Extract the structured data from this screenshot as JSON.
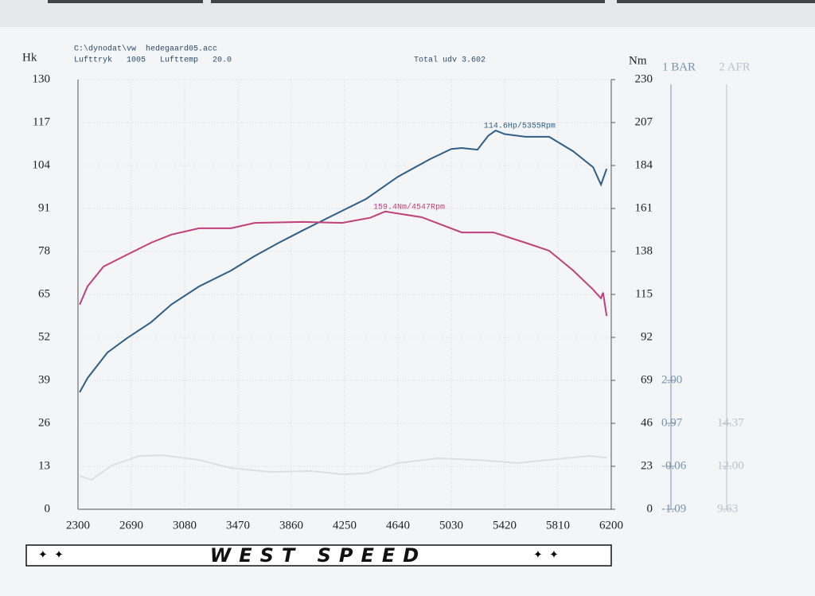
{
  "chart_data": {
    "type": "line",
    "header": {
      "file": "C:\\dynodat\\vw  hedegaard05.acc",
      "conditions": "Lufttryk   1005   Lufttemp   20.0",
      "total": "Total udv 3.602"
    },
    "ylabel": "Hk",
    "y2label": "Nm",
    "xlim": [
      2300,
      6200
    ],
    "xticks": [
      2300,
      2690,
      3080,
      3470,
      3860,
      4250,
      4640,
      5030,
      5420,
      5810,
      6200
    ],
    "ylim": [
      0,
      130
    ],
    "yticks": [
      0,
      13,
      26,
      39,
      52,
      65,
      78,
      91,
      104,
      117,
      130
    ],
    "y2lim": [
      0,
      230
    ],
    "y2ticks": [
      0,
      23,
      46,
      69,
      92,
      115,
      138,
      161,
      184,
      207,
      230
    ],
    "grid": true,
    "extra_axes": [
      {
        "name": "1 BAR",
        "color": "#7892ad",
        "lim": [
          -1.09,
          9.21
        ],
        "ticks": [
          {
            "value": -1.09,
            "label": "-1.09"
          },
          {
            "value": -0.06,
            "label": "-0.06"
          },
          {
            "value": 0.97,
            "label": "0.97"
          },
          {
            "value": 2,
            "label": "2.00"
          }
        ]
      },
      {
        "name": "2 AFR",
        "color": "#b7c4d2",
        "lim": [
          9.63,
          33.33
        ],
        "ticks": [
          {
            "value": 9.63,
            "label": "9.63"
          },
          {
            "value": 12,
            "label": "12.00"
          },
          {
            "value": 14.37,
            "label": "14.37"
          }
        ]
      }
    ],
    "series": [
      {
        "name": "Hp",
        "color": "#2f5f86",
        "axis": "y",
        "peak_label": "114.6Hp/5355Rpm",
        "x": [
          2312,
          2370,
          2515,
          2660,
          2835,
          2981,
          3185,
          3418,
          3592,
          3767,
          3941,
          4174,
          4407,
          4640,
          4873,
          5030,
          5106,
          5222,
          5300,
          5355,
          5420,
          5572,
          5746,
          5921,
          6067,
          6125,
          6166
        ],
        "values": [
          35.4,
          39.7,
          47.4,
          51.8,
          56.6,
          61.9,
          67.4,
          72.2,
          76.6,
          80.6,
          84.3,
          89.1,
          93.9,
          100.6,
          105.9,
          109.0,
          109.3,
          108.8,
          113.0,
          114.6,
          113.5,
          112.7,
          112.7,
          108.3,
          103.5,
          98.2,
          103.0
        ]
      },
      {
        "name": "Nm",
        "color": "#c0407a",
        "axis": "y2",
        "peak_label": "159.4Nm/4547Rpm",
        "x": [
          2312,
          2370,
          2486,
          2660,
          2835,
          2981,
          3185,
          3418,
          3592,
          3941,
          4232,
          4436,
          4547,
          4814,
          5106,
          5339,
          5572,
          5746,
          5921,
          6067,
          6125,
          6140,
          6166
        ],
        "values": [
          109.5,
          119.3,
          129.9,
          136.3,
          142.7,
          147.0,
          150.4,
          150.4,
          153.3,
          153.8,
          153.3,
          156.0,
          159.4,
          156.3,
          148.2,
          148.2,
          142.7,
          138.4,
          127.8,
          117.6,
          112.9,
          116.0,
          103.5
        ]
      },
      {
        "name": "AFR",
        "color": "#dcdfe3",
        "axis": "2 AFR",
        "x": [
          2312,
          2399,
          2545,
          2748,
          2923,
          3185,
          3418,
          3709,
          4000,
          4232,
          4407,
          4640,
          4931,
          5222,
          5513,
          5804,
          6037,
          6166
        ],
        "values": [
          11.47,
          11.25,
          12.04,
          12.57,
          12.61,
          12.35,
          11.91,
          11.69,
          11.74,
          11.56,
          11.61,
          12.18,
          12.44,
          12.35,
          12.18,
          12.4,
          12.57,
          12.48
        ]
      }
    ],
    "logo": "WEST SPEED"
  }
}
